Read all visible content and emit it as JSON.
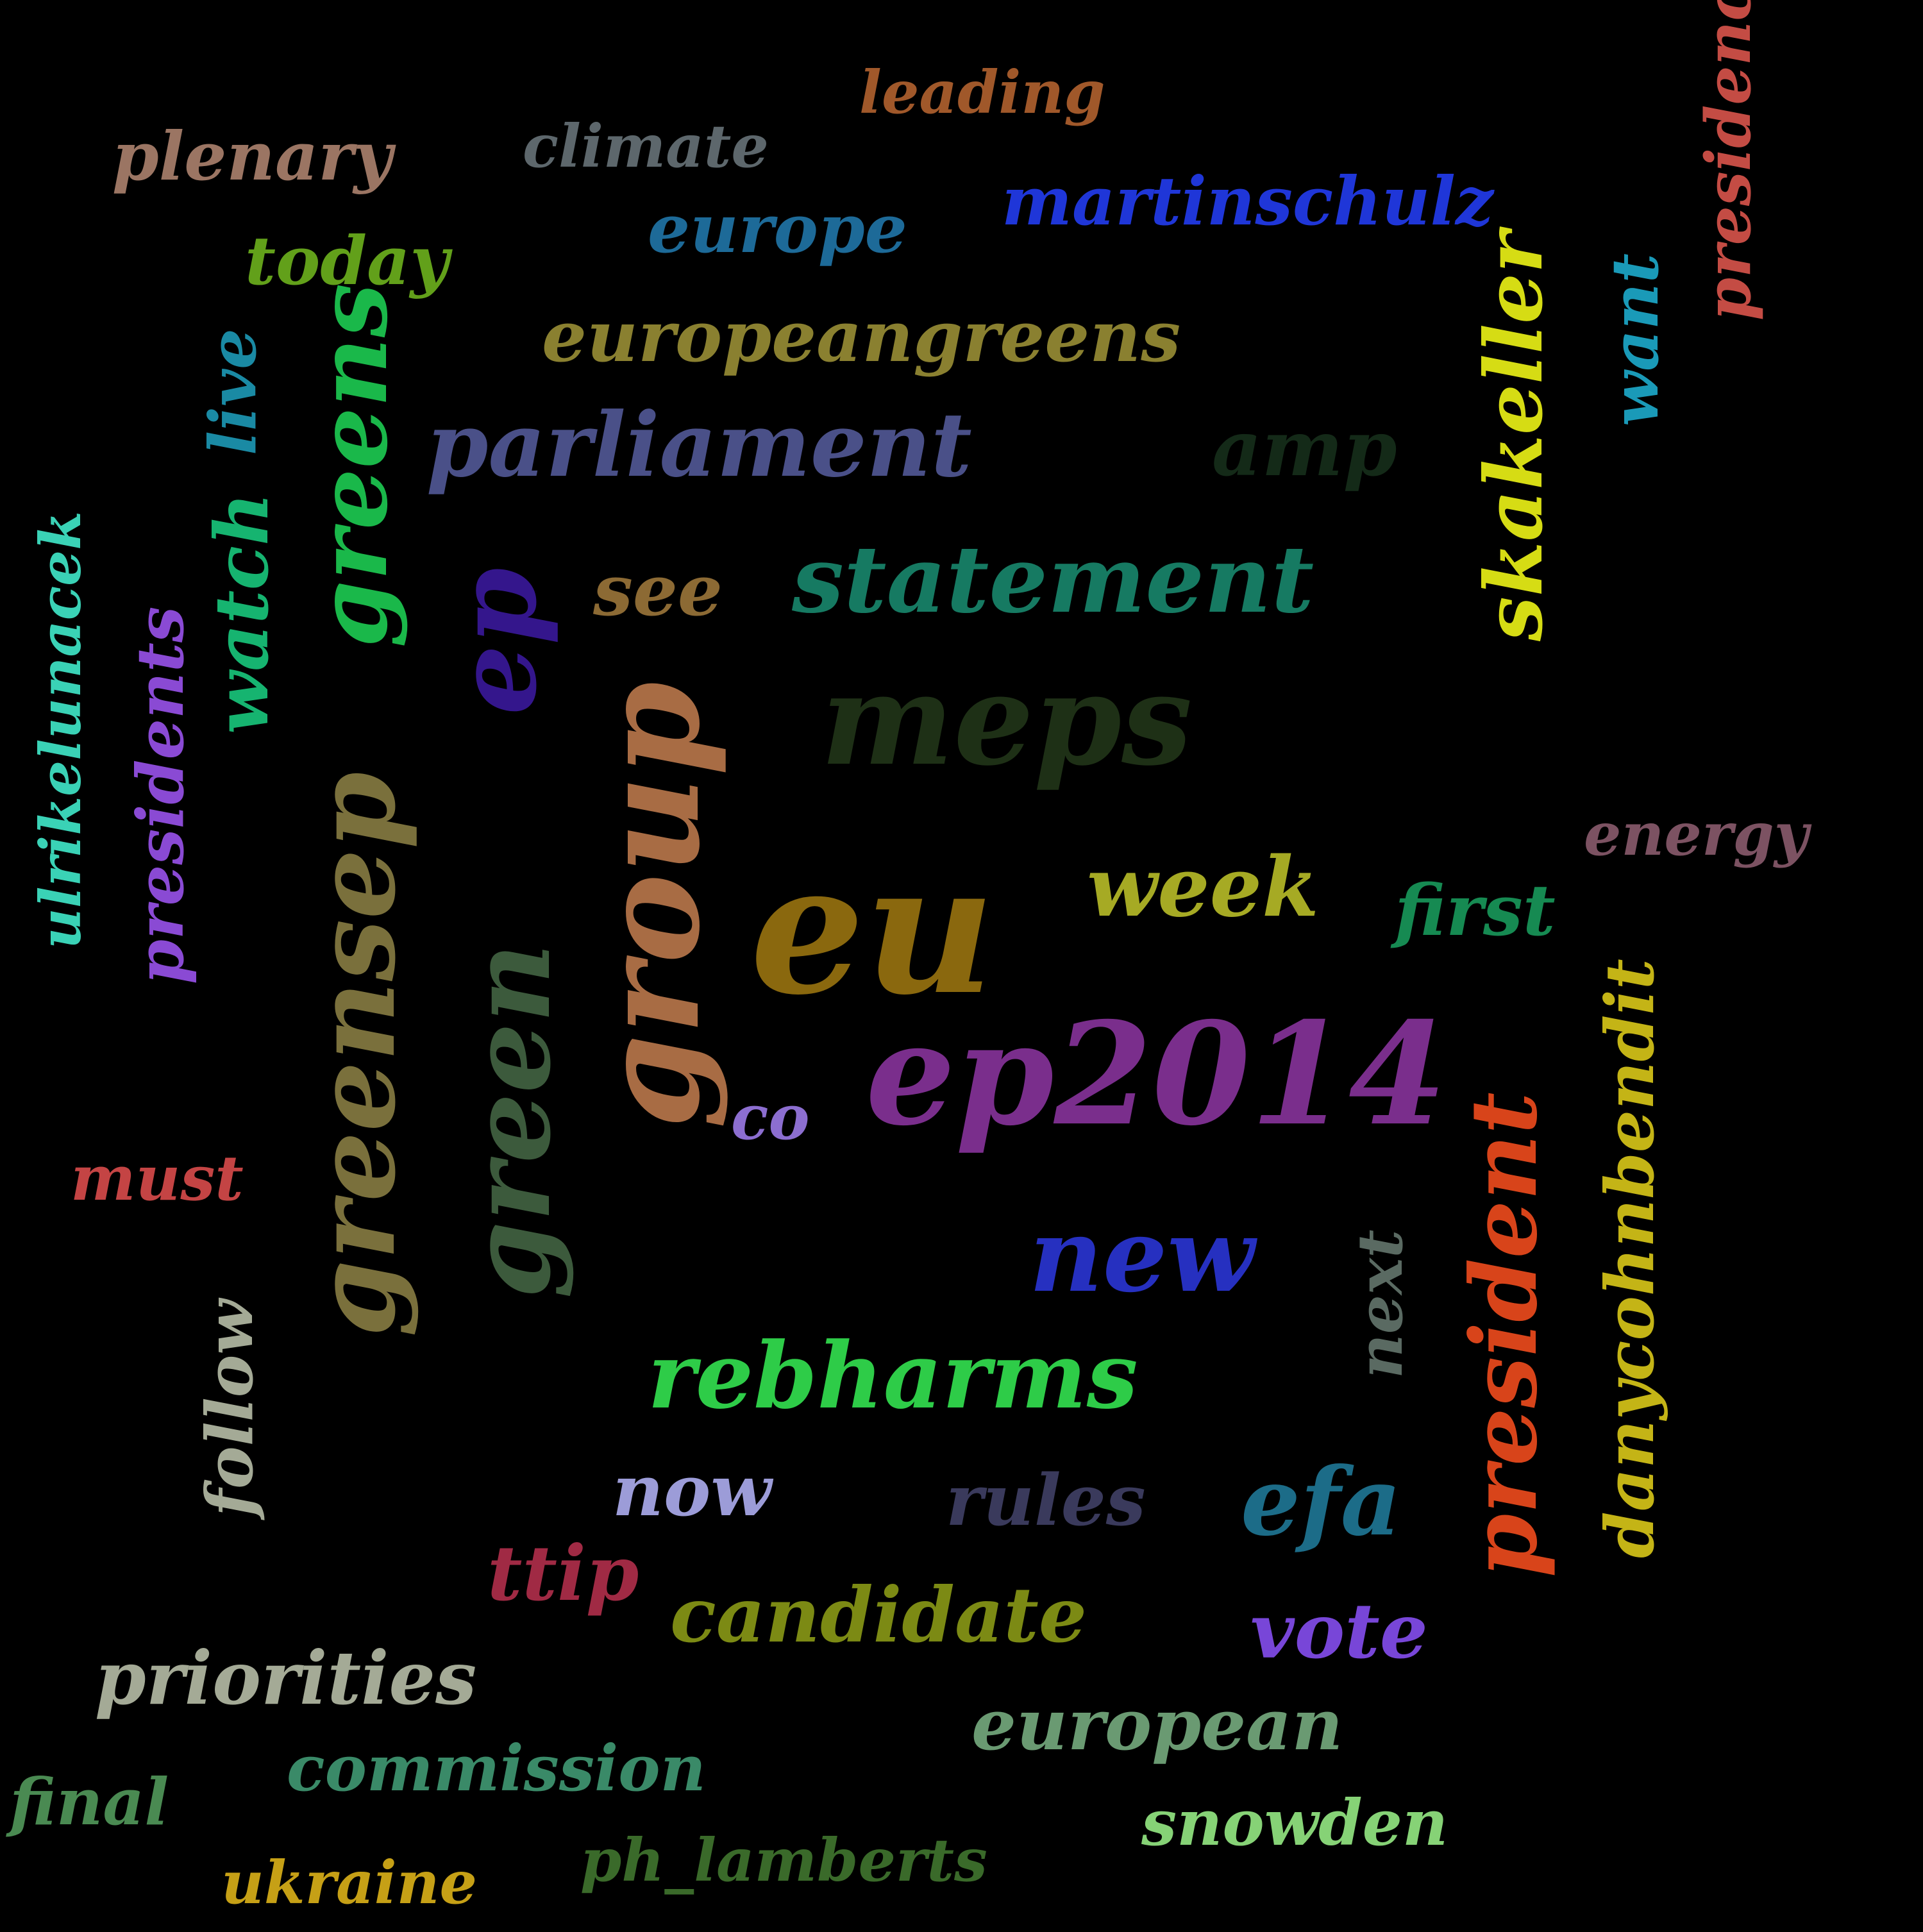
{
  "words": [
    {
      "id": "leading",
      "text": "leading",
      "color": "#a0582a",
      "orientation": "horizontal"
    },
    {
      "id": "plenary",
      "text": "plenary",
      "color": "#9b7563",
      "orientation": "horizontal"
    },
    {
      "id": "climate",
      "text": "climate",
      "color": "#5d676c",
      "orientation": "horizontal"
    },
    {
      "id": "martinschulz",
      "text": "martinschulz",
      "color": "#1f36d8",
      "orientation": "horizontal"
    },
    {
      "id": "europe",
      "text": "europe",
      "color": "#1d6a98",
      "orientation": "horizontal"
    },
    {
      "id": "today",
      "text": "today",
      "color": "#62a01a",
      "orientation": "horizontal"
    },
    {
      "id": "europeangreens",
      "text": "europeangreens",
      "color": "#8a8030",
      "orientation": "horizontal"
    },
    {
      "id": "parliament",
      "text": "parliament",
      "color": "#4a5088",
      "orientation": "horizontal"
    },
    {
      "id": "amp",
      "text": "amp",
      "color": "#142a18",
      "orientation": "horizontal"
    },
    {
      "id": "see",
      "text": "see",
      "color": "#8c6a34",
      "orientation": "horizontal"
    },
    {
      "id": "statement",
      "text": "statement",
      "color": "#167a62",
      "orientation": "horizontal"
    },
    {
      "id": "meps",
      "text": "meps",
      "color": "#1e3016",
      "orientation": "horizontal"
    },
    {
      "id": "energy",
      "text": "energy",
      "color": "#7c5262",
      "orientation": "horizontal"
    },
    {
      "id": "week",
      "text": "week",
      "color": "#a6aa24",
      "orientation": "horizontal"
    },
    {
      "id": "first",
      "text": "first",
      "color": "#168a52",
      "orientation": "horizontal"
    },
    {
      "id": "eu",
      "text": "eu",
      "color": "#8a680e",
      "orientation": "horizontal"
    },
    {
      "id": "ep2014",
      "text": "ep2014",
      "color": "#7a2e8c",
      "orientation": "horizontal"
    },
    {
      "id": "co",
      "text": "co",
      "color": "#8c6ed0",
      "orientation": "horizontal"
    },
    {
      "id": "must",
      "text": "must",
      "color": "#c44444",
      "orientation": "horizontal"
    },
    {
      "id": "new",
      "text": "new",
      "color": "#2630c0",
      "orientation": "horizontal"
    },
    {
      "id": "rebharms",
      "text": "rebharms",
      "color": "#2ecc48",
      "orientation": "horizontal"
    },
    {
      "id": "now",
      "text": "now",
      "color": "#9c9cd8",
      "orientation": "horizontal"
    },
    {
      "id": "rules",
      "text": "rules",
      "color": "#3a3a5c",
      "orientation": "horizontal"
    },
    {
      "id": "efa",
      "text": "efa",
      "color": "#1c6c88",
      "orientation": "horizontal"
    },
    {
      "id": "ttip",
      "text": "ttip",
      "color": "#a02a44",
      "orientation": "horizontal"
    },
    {
      "id": "candidate",
      "text": "candidate",
      "color": "#7c8a14",
      "orientation": "horizontal"
    },
    {
      "id": "vote",
      "text": "vote",
      "color": "#7846d8",
      "orientation": "horizontal"
    },
    {
      "id": "priorities",
      "text": "priorities",
      "color": "#a4aa96",
      "orientation": "horizontal"
    },
    {
      "id": "european",
      "text": "european",
      "color": "#6a9a72",
      "orientation": "horizontal"
    },
    {
      "id": "commission",
      "text": "commission",
      "color": "#3a8a68",
      "orientation": "horizontal"
    },
    {
      "id": "final",
      "text": "final",
      "color": "#4a8a52",
      "orientation": "horizontal"
    },
    {
      "id": "snowden",
      "text": "snowden",
      "color": "#86d276",
      "orientation": "horizontal"
    },
    {
      "id": "ph_lamberts",
      "text": "ph_lamberts",
      "color": "#3a6a2a",
      "orientation": "horizontal"
    },
    {
      "id": "ukraine",
      "text": "ukraine",
      "color": "#c6a016",
      "orientation": "horizontal"
    },
    {
      "id": "presidency",
      "text": "presidency",
      "color": "#c44c44",
      "orientation": "vertical"
    },
    {
      "id": "want",
      "text": "want",
      "color": "#1a9ab8",
      "orientation": "vertical"
    },
    {
      "id": "skakeller",
      "text": "skakeller",
      "color": "#d6dc14",
      "orientation": "vertical"
    },
    {
      "id": "live",
      "text": "live",
      "color": "#1a8aa4",
      "orientation": "vertical"
    },
    {
      "id": "greens",
      "text": "greens",
      "color": "#1ab84a",
      "orientation": "vertical"
    },
    {
      "id": "watch",
      "text": "watch",
      "color": "#16b470",
      "orientation": "vertical"
    },
    {
      "id": "ep",
      "text": "ep",
      "color": "#34168c",
      "orientation": "vertical"
    },
    {
      "id": "ulrikelunacek",
      "text": "ulrikelunacek",
      "color": "#3ad2b6",
      "orientation": "vertical"
    },
    {
      "id": "presidents",
      "text": "presidents",
      "color": "#8a4ad4",
      "orientation": "vertical"
    },
    {
      "id": "group",
      "text": "group",
      "color": "#a86c44",
      "orientation": "vertical"
    },
    {
      "id": "greensep",
      "text": "greensep",
      "color": "#7a703c",
      "orientation": "vertical"
    },
    {
      "id": "green",
      "text": "green",
      "color": "#3c5a3c",
      "orientation": "vertical"
    },
    {
      "id": "follow",
      "text": "follow",
      "color": "#a4aa96",
      "orientation": "vertical"
    },
    {
      "id": "next",
      "text": "next",
      "color": "#5a6a62",
      "orientation": "vertical"
    },
    {
      "id": "president",
      "text": "president",
      "color": "#d8441a",
      "orientation": "vertical"
    },
    {
      "id": "danycohnbendit",
      "text": "danycohnbendit",
      "color": "#c4b416",
      "orientation": "vertical"
    }
  ]
}
